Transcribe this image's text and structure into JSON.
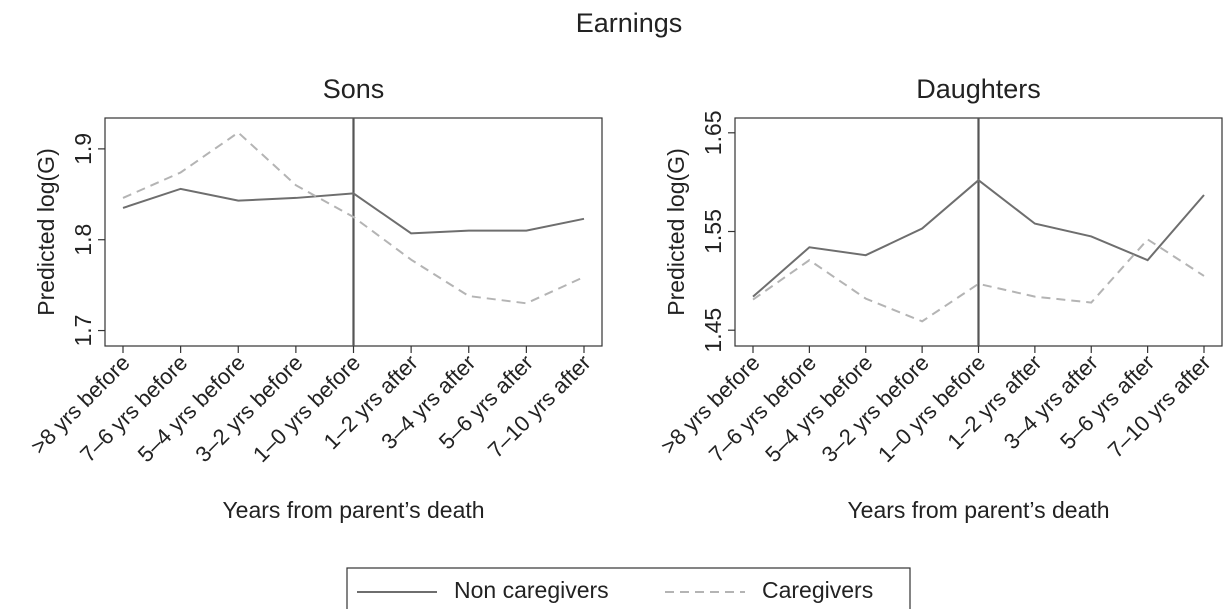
{
  "title": "Earnings",
  "chart_data": [
    {
      "type": "line",
      "title": "Sons",
      "ylabel": "Predicted log(G)",
      "xlabel": "Years from parent’s death",
      "categories": [
        ">8 yrs before",
        "7–6 yrs before",
        "5–4 yrs before",
        "3–2 yrs before",
        "1–0 yrs before",
        "1–2 yrs after",
        "3–4 yrs after",
        "5–6 yrs after",
        "7–10 yrs after"
      ],
      "ylim": [
        1.683,
        1.934
      ],
      "yticks": [
        1.7,
        1.8,
        1.9
      ],
      "vline_index": 4,
      "series": [
        {
          "name": "Non caregivers",
          "color": "#6e6e6e",
          "dash": "solid",
          "values": [
            1.835,
            1.856,
            1.843,
            1.846,
            1.851,
            1.807,
            1.81,
            1.81,
            1.823
          ]
        },
        {
          "name": "Caregivers",
          "color": "#b4b4b4",
          "dash": "dashed",
          "values": [
            1.846,
            1.874,
            1.918,
            1.86,
            1.825,
            1.778,
            1.738,
            1.73,
            1.759
          ]
        }
      ]
    },
    {
      "type": "line",
      "title": "Daughters",
      "ylabel": "Predicted log(G)",
      "xlabel": "Years from parent’s death",
      "categories": [
        ">8 yrs before",
        "7–6 yrs before",
        "5–4 yrs before",
        "3–2 yrs before",
        "1–0 yrs before",
        "1–2 yrs after",
        "3–4 yrs after",
        "5–6 yrs after",
        "7–10 yrs after"
      ],
      "ylim": [
        1.434,
        1.665
      ],
      "yticks": [
        1.45,
        1.55,
        1.65
      ],
      "vline_index": 4,
      "series": [
        {
          "name": "Non caregivers",
          "color": "#6e6e6e",
          "dash": "solid",
          "values": [
            1.484,
            1.534,
            1.526,
            1.553,
            1.602,
            1.558,
            1.545,
            1.521,
            1.587
          ]
        },
        {
          "name": "Caregivers",
          "color": "#b4b4b4",
          "dash": "dashed",
          "values": [
            1.481,
            1.521,
            1.482,
            1.459,
            1.497,
            1.484,
            1.478,
            1.542,
            1.505
          ]
        }
      ]
    }
  ]
}
